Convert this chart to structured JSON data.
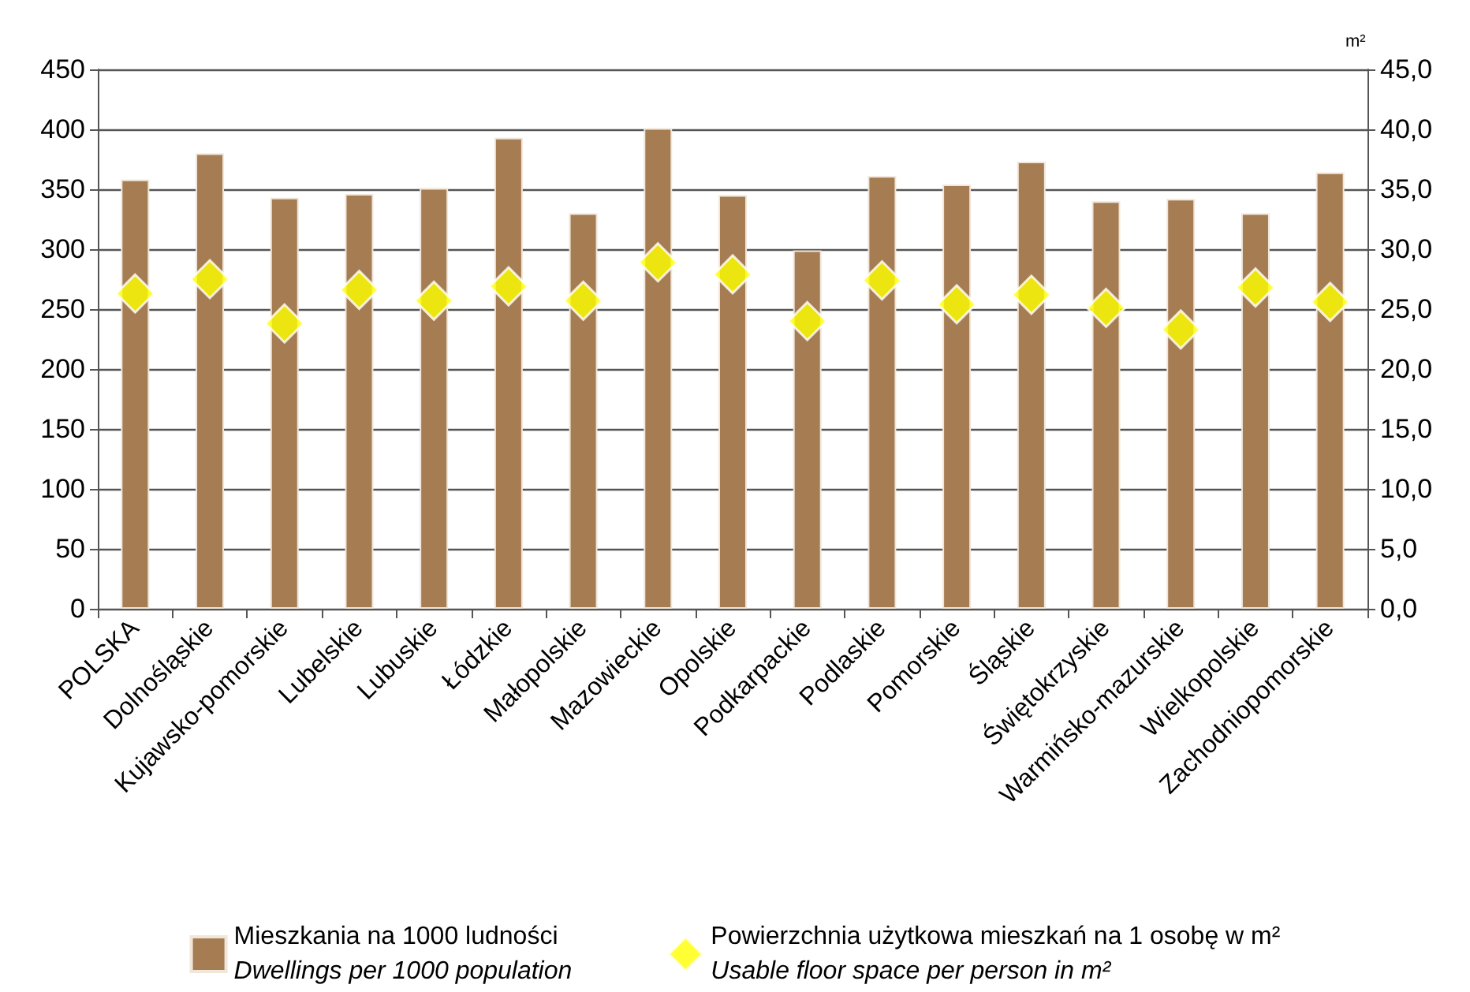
{
  "chart_data": {
    "type": "bar",
    "y2label": "m²",
    "categories": [
      "POLSKA",
      "Dolnośląskie",
      "Kujawsko-pomorskie",
      "Lubelskie",
      "Lubuskie",
      "Łódzkie",
      "Małopolskie",
      "Mazowieckie",
      "Opolskie",
      "Podkarpackie",
      "Podlaskie",
      "Pomorskie",
      "Śląskie",
      "Świętokrzyskie",
      "Warmińsko-mazurskie",
      "Wielkopolskie",
      "Zachodniopomorskie"
    ],
    "series": [
      {
        "name": "Mieszkania na 1000 ludności\nDwellings per 1000 population",
        "color": "#a67c52",
        "values": [
          358,
          380,
          343,
          346,
          351,
          393,
          330,
          401,
          345,
          299,
          361,
          354,
          373,
          340,
          342,
          330,
          364
        ]
      },
      {
        "type": "scatter",
        "axis": "y2",
        "marker": "diamond",
        "name": "Powierzchnia użytkowa mieszkań na 1 osobę w m²\nUsable floor space per person in m²",
        "color": "#ffff00",
        "values": [
          26.3,
          27.5,
          23.8,
          26.6,
          25.7,
          26.9,
          25.7,
          28.9,
          27.9,
          24.0,
          27.4,
          25.4,
          26.2,
          25.1,
          23.3,
          26.8,
          25.6
        ]
      }
    ],
    "ylim": [
      0,
      450
    ],
    "yticks": [
      0,
      50,
      100,
      150,
      200,
      250,
      300,
      350,
      400,
      450
    ],
    "y2lim": [
      0,
      45
    ],
    "y2ticks": [
      {
        "value": 0,
        "label": "0,0"
      },
      {
        "value": 5,
        "label": "5,0"
      },
      {
        "value": 10,
        "label": "10,0"
      },
      {
        "value": 15,
        "label": "15,0"
      },
      {
        "value": 20,
        "label": "20,0"
      },
      {
        "value": 25,
        "label": "25,0"
      },
      {
        "value": 30,
        "label": "30,0"
      },
      {
        "value": 35,
        "label": "35,0"
      },
      {
        "value": 40,
        "label": "40,0"
      },
      {
        "value": 45,
        "label": "45,0"
      }
    ],
    "grid": "y",
    "legend": "bottom"
  }
}
